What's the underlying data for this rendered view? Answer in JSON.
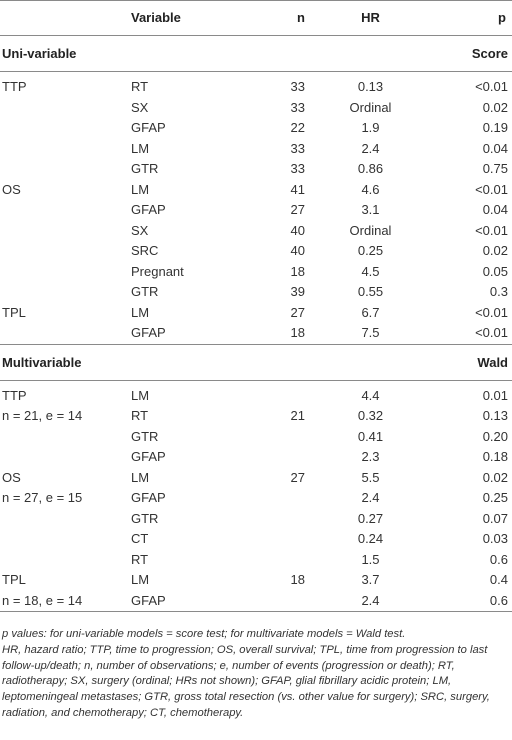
{
  "header": {
    "col_variable": "Variable",
    "col_n": "n",
    "col_hr": "HR",
    "col_p": "p"
  },
  "univariable": {
    "title": "Uni-variable",
    "test_label": "Score",
    "rows": [
      {
        "label": "TTP",
        "variable": "RT",
        "n": "33",
        "hr": "0.13",
        "p": "<0.01"
      },
      {
        "label": "",
        "variable": "SX",
        "n": "33",
        "hr": "Ordinal",
        "p": "0.02"
      },
      {
        "label": "",
        "variable": "GFAP",
        "n": "22",
        "hr": "1.9",
        "p": "0.19"
      },
      {
        "label": "",
        "variable": "LM",
        "n": "33",
        "hr": "2.4",
        "p": "0.04"
      },
      {
        "label": "",
        "variable": "GTR",
        "n": "33",
        "hr": "0.86",
        "p": "0.75"
      },
      {
        "label": "OS",
        "variable": "LM",
        "n": "41",
        "hr": "4.6",
        "p": "<0.01"
      },
      {
        "label": "",
        "variable": "GFAP",
        "n": "27",
        "hr": "3.1",
        "p": "0.04"
      },
      {
        "label": "",
        "variable": "SX",
        "n": "40",
        "hr": "Ordinal",
        "p": "<0.01"
      },
      {
        "label": "",
        "variable": "SRC",
        "n": "40",
        "hr": "0.25",
        "p": "0.02"
      },
      {
        "label": "",
        "variable": "Pregnant",
        "n": "18",
        "hr": "4.5",
        "p": "0.05"
      },
      {
        "label": "",
        "variable": "GTR",
        "n": "39",
        "hr": "0.55",
        "p": "0.3"
      },
      {
        "label": "TPL",
        "variable": "LM",
        "n": "27",
        "hr": "6.7",
        "p": "<0.01"
      },
      {
        "label": "",
        "variable": "GFAP",
        "n": "18",
        "hr": "7.5",
        "p": "<0.01"
      }
    ]
  },
  "multivariable": {
    "title": "Multivariable",
    "test_label": "Wald",
    "rows": [
      {
        "label": "TTP",
        "variable": "LM",
        "n": "",
        "hr": "4.4",
        "p": "0.01"
      },
      {
        "label": "n = 21, e = 14",
        "variable": "RT",
        "n": "21",
        "hr": "0.32",
        "p": "0.13"
      },
      {
        "label": "",
        "variable": "GTR",
        "n": "",
        "hr": "0.41",
        "p": "0.20"
      },
      {
        "label": "",
        "variable": "GFAP",
        "n": "",
        "hr": "2.3",
        "p": "0.18"
      },
      {
        "label": "OS",
        "variable": "LM",
        "n": "27",
        "hr": "5.5",
        "p": "0.02"
      },
      {
        "label": "n = 27, e = 15",
        "variable": "GFAP",
        "n": "",
        "hr": "2.4",
        "p": "0.25"
      },
      {
        "label": "",
        "variable": "GTR",
        "n": "",
        "hr": "0.27",
        "p": "0.07"
      },
      {
        "label": "",
        "variable": "CT",
        "n": "",
        "hr": "0.24",
        "p": "0.03"
      },
      {
        "label": "",
        "variable": "RT",
        "n": "",
        "hr": "1.5",
        "p": "0.6"
      },
      {
        "label": "TPL",
        "variable": "LM",
        "n": "18",
        "hr": "3.7",
        "p": "0.4"
      },
      {
        "label": "n = 18, e = 14",
        "variable": "GFAP",
        "n": "",
        "hr": "2.4",
        "p": "0.6"
      }
    ]
  },
  "footnotes": [
    "p values: for uni-variable models = score test; for multivariate models = Wald test.",
    "HR, hazard ratio; TTP, time to progression; OS, overall survival; TPL, time from progression to last follow-up/death; n, number of observations; e, number of events (progression or death); RT, radiotherapy; SX, surgery (ordinal; HRs not shown); GFAP, glial fibrillary acidic protein; LM, leptomeningeal metastases; GTR, gross total resection (vs. other value for surgery); SRC, surgery, radiation, and chemotherapy; CT, chemotherapy."
  ]
}
